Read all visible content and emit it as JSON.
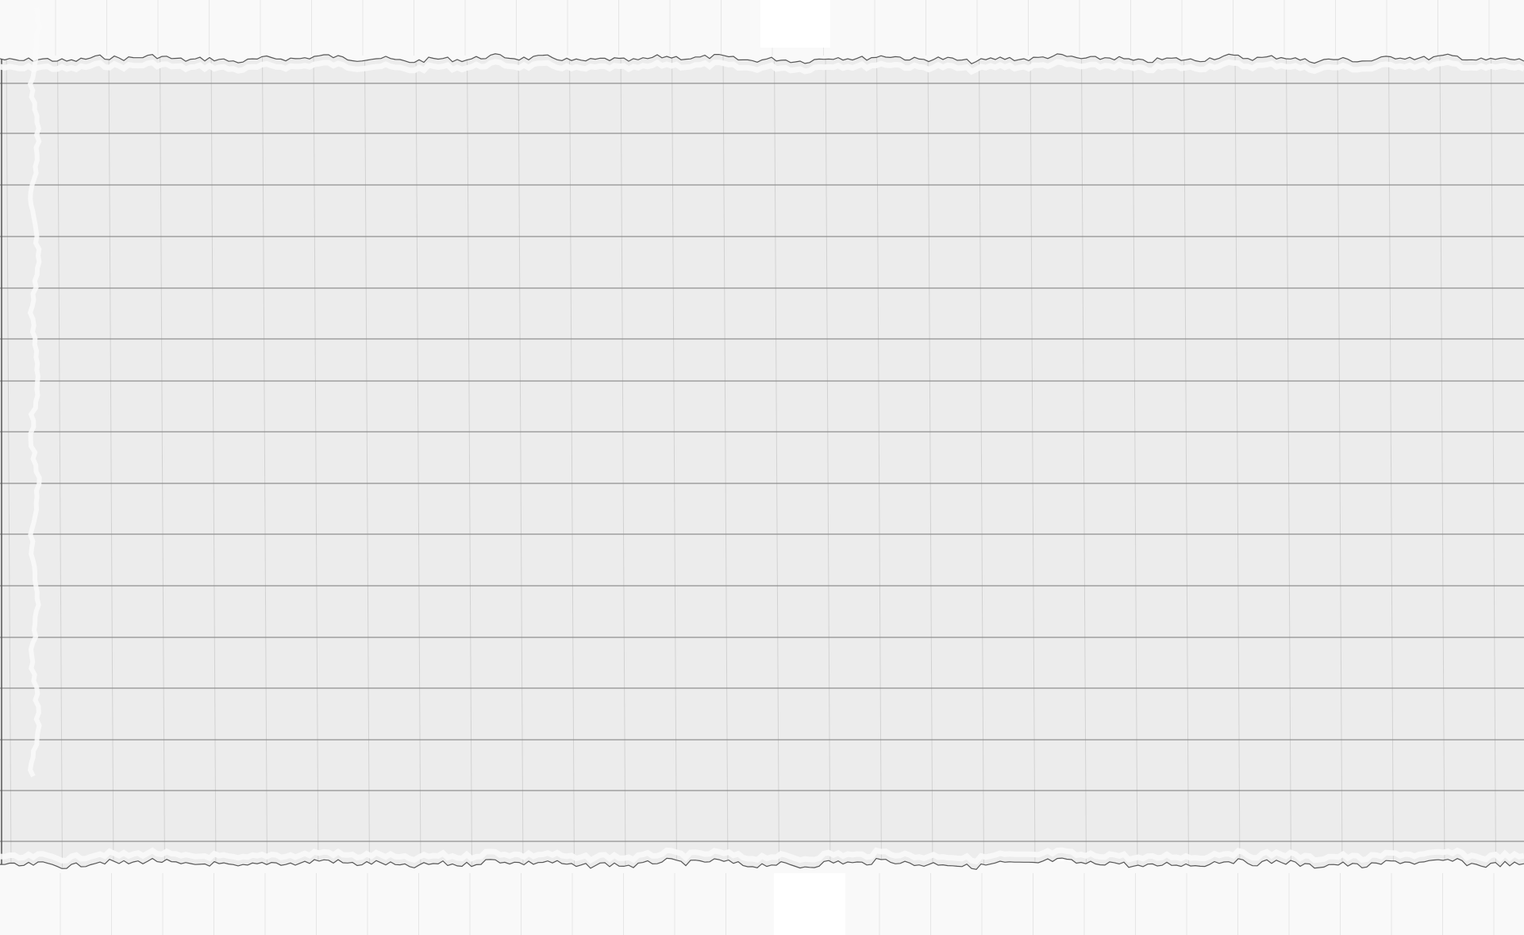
{
  "image": {
    "subject": "torn-grid-paper",
    "colors": {
      "background": "#ffffff",
      "outer_paper": "#f9f9f9",
      "strip": "#ececec",
      "tear_highlight": "#fafafa",
      "tear_edge": "#555555",
      "major_rule": "#8e8e8e",
      "minor_rule": "#d2d2d2",
      "outer_grid": "#e6e6e6"
    }
  }
}
